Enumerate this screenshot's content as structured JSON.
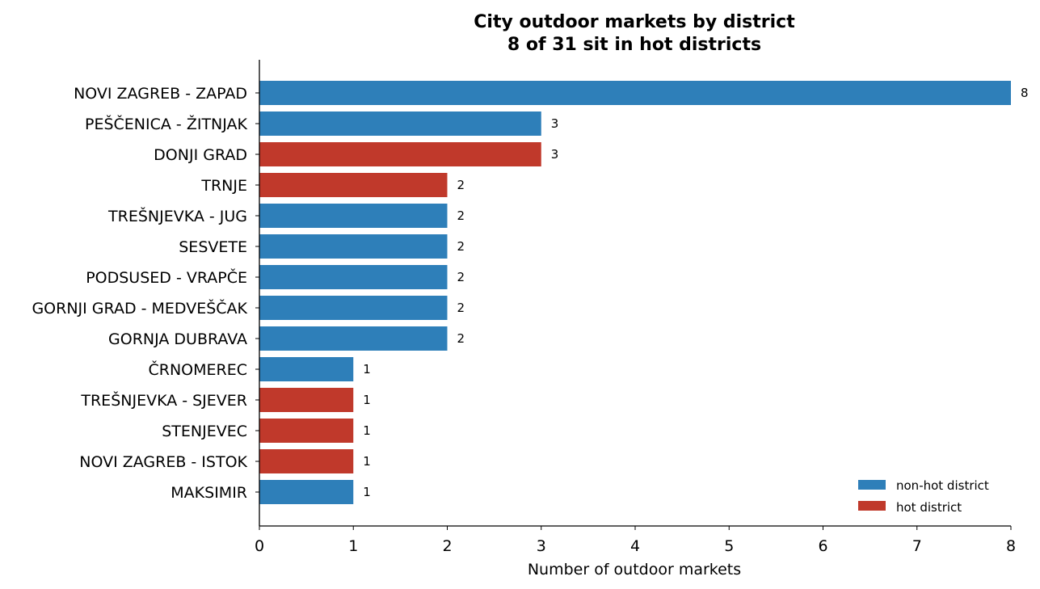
{
  "chart_data": {
    "type": "bar",
    "orientation": "horizontal",
    "title": [
      "City outdoor markets by district",
      "8 of 31 sit in hot districts"
    ],
    "xlabel": "Number of outdoor markets",
    "ylabel": "",
    "xlim": [
      0,
      8
    ],
    "xticks": [
      "0",
      "1",
      "2",
      "3",
      "4",
      "5",
      "6",
      "7",
      "8"
    ],
    "grid": false,
    "legend_position": "bottom-right",
    "legend": [
      {
        "label": "non-hot district",
        "color": "#2e7fb9"
      },
      {
        "label": "hot district",
        "color": "#c0392b"
      }
    ],
    "bars": [
      {
        "category": "NOVI ZAGREB - ZAPAD",
        "value": 8,
        "hot": false
      },
      {
        "category": "PEŠČENICA - ŽITNJAK",
        "value": 3,
        "hot": false
      },
      {
        "category": "DONJI GRAD",
        "value": 3,
        "hot": true
      },
      {
        "category": "TRNJE",
        "value": 2,
        "hot": true
      },
      {
        "category": "TREŠNJEVKA - JUG",
        "value": 2,
        "hot": false
      },
      {
        "category": "SESVETE",
        "value": 2,
        "hot": false
      },
      {
        "category": "PODSUSED - VRAPČE",
        "value": 2,
        "hot": false
      },
      {
        "category": "GORNJI GRAD - MEDVEŠČAK",
        "value": 2,
        "hot": false
      },
      {
        "category": "GORNJA DUBRAVA",
        "value": 2,
        "hot": false
      },
      {
        "category": "ČRNOMEREC",
        "value": 1,
        "hot": false
      },
      {
        "category": "TREŠNJEVKA - SJEVER",
        "value": 1,
        "hot": true
      },
      {
        "category": "STENJEVEC",
        "value": 1,
        "hot": true
      },
      {
        "category": "NOVI ZAGREB - ISTOK",
        "value": 1,
        "hot": true
      },
      {
        "category": "MAKSIMIR",
        "value": 1,
        "hot": false
      }
    ],
    "colors": {
      "non_hot": "#2e7fb9",
      "hot": "#c0392b",
      "axis": "#000000"
    }
  }
}
